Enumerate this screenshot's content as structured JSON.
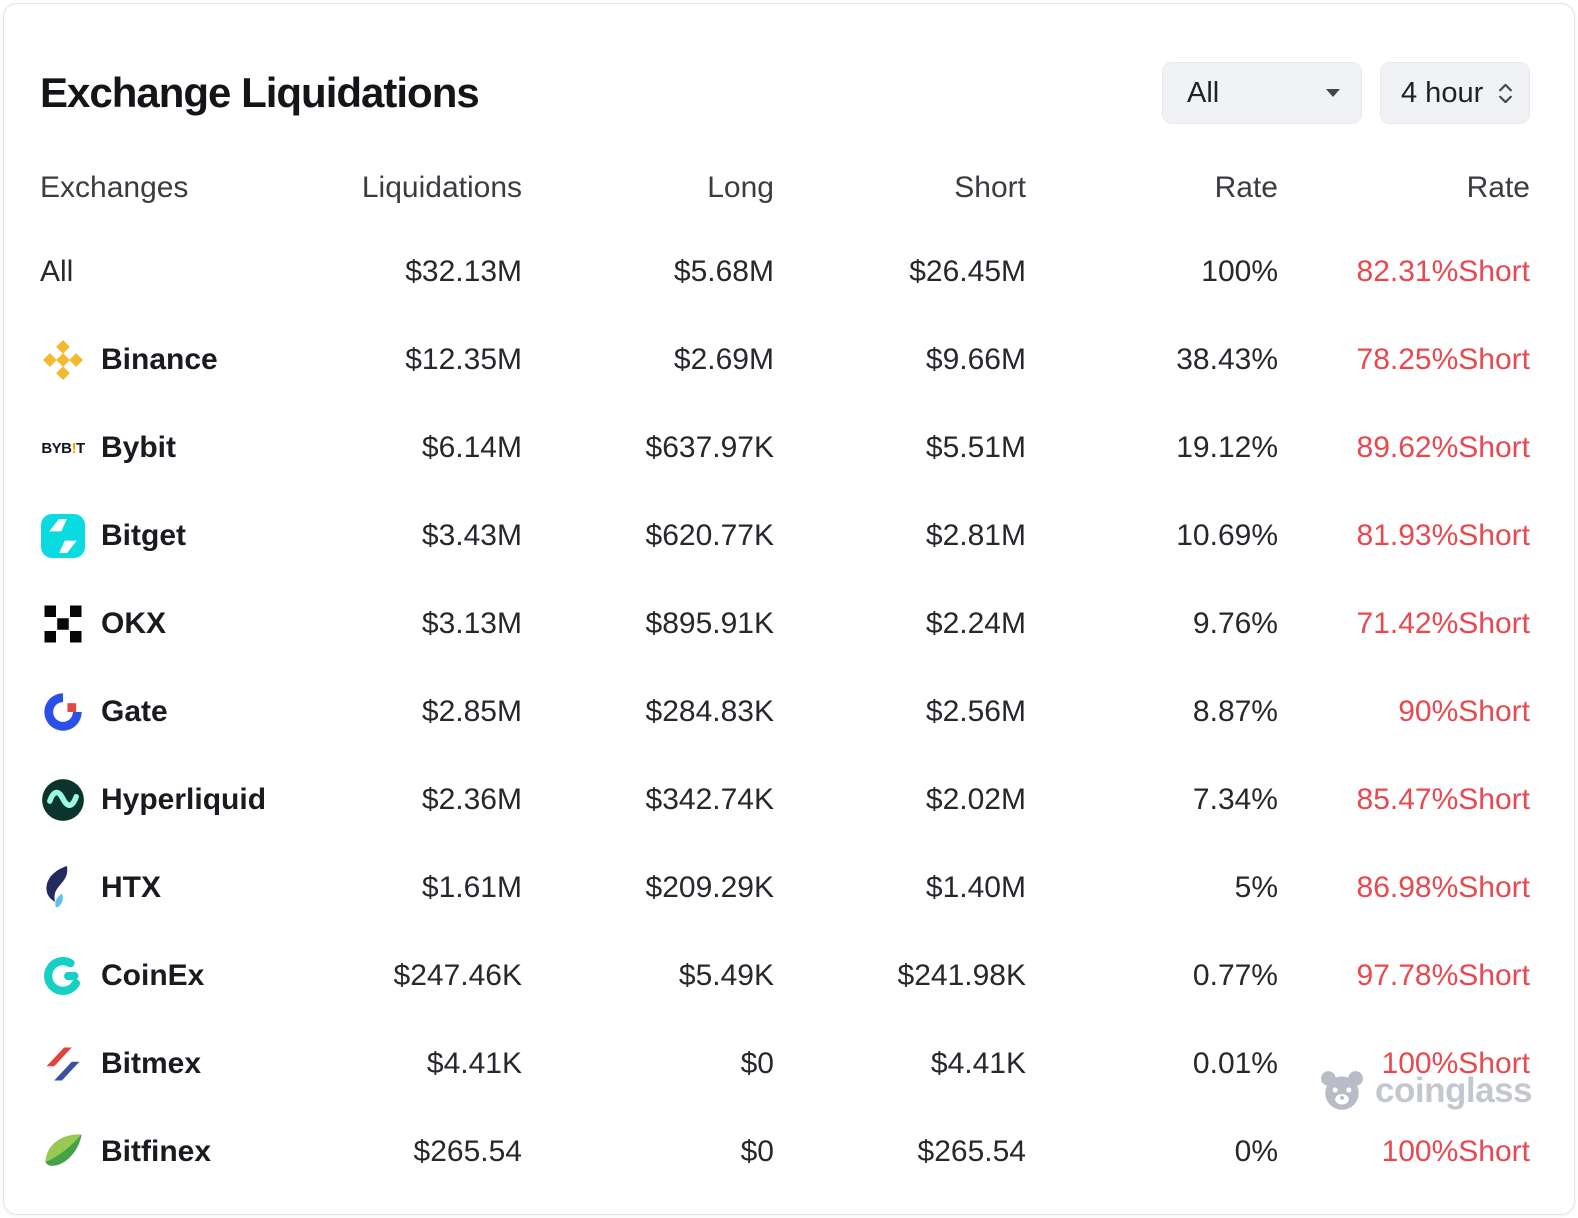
{
  "header": {
    "title": "Exchange Liquidations"
  },
  "controls": {
    "exchange_filter": {
      "value": "All"
    },
    "timeframe": {
      "value": "4 hour"
    }
  },
  "table": {
    "columns": [
      "Exchanges",
      "Liquidations",
      "Long",
      "Short",
      "Rate",
      "Rate"
    ],
    "rows": [
      {
        "exchange": "All",
        "logo": null,
        "liquidations": "$32.13M",
        "long": "$5.68M",
        "short": "$26.45M",
        "rate": "100%",
        "short_rate": "82.31%Short"
      },
      {
        "exchange": "Binance",
        "logo": "binance-logo",
        "liquidations": "$12.35M",
        "long": "$2.69M",
        "short": "$9.66M",
        "rate": "38.43%",
        "short_rate": "78.25%Short"
      },
      {
        "exchange": "Bybit",
        "logo": "bybit-logo",
        "liquidations": "$6.14M",
        "long": "$637.97K",
        "short": "$5.51M",
        "rate": "19.12%",
        "short_rate": "89.62%Short"
      },
      {
        "exchange": "Bitget",
        "logo": "bitget-logo",
        "liquidations": "$3.43M",
        "long": "$620.77K",
        "short": "$2.81M",
        "rate": "10.69%",
        "short_rate": "81.93%Short"
      },
      {
        "exchange": "OKX",
        "logo": "okx-logo",
        "liquidations": "$3.13M",
        "long": "$895.91K",
        "short": "$2.24M",
        "rate": "9.76%",
        "short_rate": "71.42%Short"
      },
      {
        "exchange": "Gate",
        "logo": "gate-logo",
        "liquidations": "$2.85M",
        "long": "$284.83K",
        "short": "$2.56M",
        "rate": "8.87%",
        "short_rate": "90%Short"
      },
      {
        "exchange": "Hyperliquid",
        "logo": "hyperliquid-logo",
        "liquidations": "$2.36M",
        "long": "$342.74K",
        "short": "$2.02M",
        "rate": "7.34%",
        "short_rate": "85.47%Short"
      },
      {
        "exchange": "HTX",
        "logo": "htx-logo",
        "liquidations": "$1.61M",
        "long": "$209.29K",
        "short": "$1.40M",
        "rate": "5%",
        "short_rate": "86.98%Short"
      },
      {
        "exchange": "CoinEx",
        "logo": "coinex-logo",
        "liquidations": "$247.46K",
        "long": "$5.49K",
        "short": "$241.98K",
        "rate": "0.77%",
        "short_rate": "97.78%Short"
      },
      {
        "exchange": "Bitmex",
        "logo": "bitmex-logo",
        "liquidations": "$4.41K",
        "long": "$0",
        "short": "$4.41K",
        "rate": "0.01%",
        "short_rate": "100%Short"
      },
      {
        "exchange": "Bitfinex",
        "logo": "bitfinex-logo",
        "liquidations": "$265.54",
        "long": "$0",
        "short": "$265.54",
        "rate": "0%",
        "short_rate": "100%Short"
      }
    ]
  },
  "watermark": {
    "text": "coinglass"
  },
  "colors": {
    "short_red": "#e8494f"
  }
}
